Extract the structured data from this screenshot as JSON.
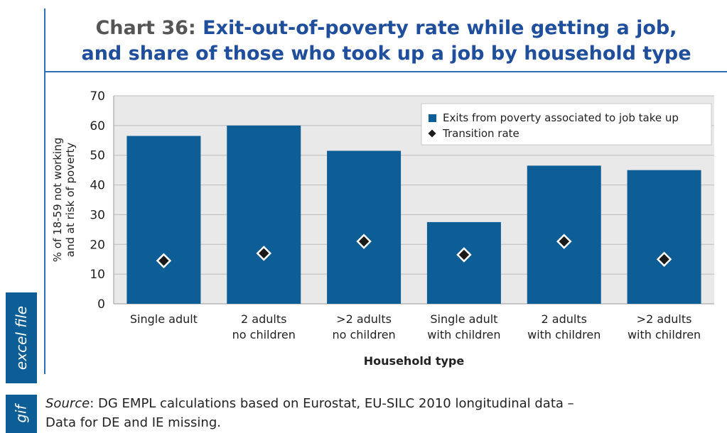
{
  "header": {
    "title_prefix": "Chart 36:",
    "title_line1": "Exit-out-of-poverty rate while getting a job,",
    "title_line2": "and share of those who took up a job by household type"
  },
  "side_tabs": {
    "excel": "excel file",
    "gif": "gif"
  },
  "source": {
    "label": "Source",
    "line1": ": DG EMPL calculations based on Eurostat, EU-SILC 2010 longitudinal data –",
    "line2": "Data for DE and IE missing."
  },
  "colors": {
    "bar": "#0d5e96",
    "marker": "#1a1a1a",
    "frame": "#2f6db5"
  },
  "chart_data": {
    "type": "bar",
    "categories": [
      [
        "Single adult"
      ],
      [
        "2 adults",
        "no children"
      ],
      [
        ">2 adults",
        "no children"
      ],
      [
        "Single adult",
        "with children"
      ],
      [
        "2 adults",
        "with children"
      ],
      [
        ">2 adults",
        "with children"
      ]
    ],
    "series": [
      {
        "name": "Exits from poverty associated to job take up",
        "kind": "bar",
        "values": [
          56.5,
          60,
          51.5,
          27.5,
          46.5,
          45
        ]
      },
      {
        "name": "Transition rate",
        "kind": "marker",
        "values": [
          14.5,
          17,
          21,
          16.5,
          21,
          15
        ]
      }
    ],
    "xlabel": "Household type",
    "ylabel": [
      "% of 18-59 not working",
      "and at risk of poverty"
    ],
    "ylim": [
      0,
      70
    ],
    "yticks": [
      0,
      10,
      20,
      30,
      40,
      50,
      60,
      70
    ],
    "grid": true,
    "legend_position": "top-right"
  }
}
